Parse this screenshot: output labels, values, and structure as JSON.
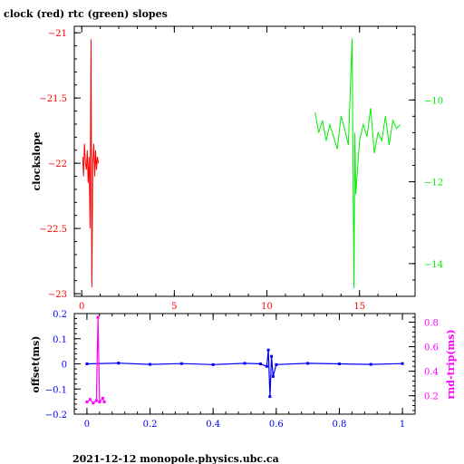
{
  "title": "clock (red) rtc (green) slopes",
  "footer": "2021-12-12 monopole.physics.ubc.ca",
  "colors": {
    "red": "#ff0000",
    "green": "#00ee00",
    "blue": "#0000ff",
    "magenta": "#ff00ff",
    "black": "#000000"
  },
  "chart_data": [
    {
      "type": "line",
      "title": "clock (red) rtc (green) slopes",
      "ylabel": "clockslope",
      "xlim": [
        -0.4,
        18
      ],
      "xticks": [
        0,
        5,
        10,
        15
      ],
      "y_left": {
        "ylim": [
          -23.02,
          -20.95
        ],
        "ticks": [
          -21,
          -21.5,
          -22,
          -22.5,
          -23
        ],
        "color": "#ff0000"
      },
      "y_right": {
        "ylim": [
          -14.8,
          -8.2
        ],
        "ticks": [
          -10,
          -12,
          -14
        ],
        "color": "#00ee00"
      },
      "series": [
        {
          "color": "red",
          "axis": "left",
          "x": [
            0.05,
            0.1,
            0.15,
            0.2,
            0.25,
            0.3,
            0.35,
            0.4,
            0.45,
            0.5,
            0.55,
            0.6,
            0.65,
            0.7,
            0.75,
            0.8,
            0.85,
            0.9
          ],
          "y": [
            -21.95,
            -22.1,
            -21.85,
            -22.0,
            -22.05,
            -21.9,
            -22.15,
            -21.95,
            -22.5,
            -21.05,
            -22.95,
            -22.0,
            -21.85,
            -22.1,
            -21.9,
            -22.05,
            -21.95,
            -22.0
          ]
        },
        {
          "color": "green",
          "axis": "right",
          "x": [
            12.6,
            12.8,
            13.0,
            13.2,
            13.4,
            13.6,
            13.8,
            14.0,
            14.2,
            14.4,
            14.6,
            14.7,
            14.75,
            14.8,
            15.0,
            15.2,
            15.4,
            15.6,
            15.8,
            16.0,
            16.2,
            16.4,
            16.6,
            16.8,
            17.0,
            17.2
          ],
          "y": [
            -10.3,
            -10.8,
            -10.5,
            -11.0,
            -10.6,
            -10.9,
            -11.2,
            -10.4,
            -10.7,
            -11.1,
            -8.5,
            -14.6,
            -10.8,
            -12.3,
            -11.0,
            -10.6,
            -10.9,
            -10.2,
            -11.3,
            -10.8,
            -11.0,
            -10.4,
            -11.1,
            -10.5,
            -10.7,
            -10.6
          ]
        }
      ]
    },
    {
      "type": "scatter",
      "ylabel": "offset(ms)",
      "y2label": "rnd-trip(ms)",
      "xlim": [
        -0.04,
        1.04
      ],
      "xticks": [
        0,
        0.2,
        0.4,
        0.6,
        0.8,
        1
      ],
      "y_left": {
        "ylim": [
          -0.2,
          0.2
        ],
        "ticks": [
          0.2,
          0.1,
          0,
          -0.1,
          -0.2
        ],
        "color": "#0000ff"
      },
      "y_right": {
        "ylim": [
          0.05,
          0.87
        ],
        "ticks": [
          0.8,
          0.6,
          0.4,
          0.2
        ],
        "color": "#ff00ff"
      },
      "series": [
        {
          "color": "blue",
          "axis": "left",
          "x": [
            0,
            0.1,
            0.2,
            0.3,
            0.4,
            0.5,
            0.55,
            0.57,
            0.575,
            0.58,
            0.585,
            0.59,
            0.6,
            0.7,
            0.8,
            0.9,
            1.0
          ],
          "y": [
            0,
            0.003,
            -0.002,
            0.001,
            -0.003,
            0.002,
            0.0,
            -0.01,
            0.055,
            -0.13,
            0.03,
            -0.05,
            -0.003,
            0.002,
            0.0,
            -0.002,
            0.001
          ]
        },
        {
          "color": "magenta",
          "axis": "right",
          "x": [
            0,
            0.01,
            0.02,
            0.03,
            0.035,
            0.04,
            0.05,
            0.055
          ],
          "y": [
            0.15,
            0.17,
            0.14,
            0.16,
            0.84,
            0.15,
            0.18,
            0.15
          ]
        }
      ]
    }
  ]
}
